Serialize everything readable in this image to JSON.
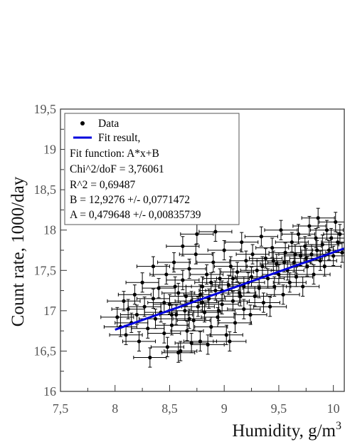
{
  "chart_data": {
    "type": "scatter",
    "xlabel": "Humidity, g/m",
    "xlabel_sup": "3",
    "ylabel": "Count rate, 1000/day",
    "xlim": [
      7.5,
      10.1
    ],
    "ylim": [
      16.0,
      19.5
    ],
    "x_ticks": [
      7.5,
      8,
      8.5,
      9,
      9.5,
      10
    ],
    "x_tick_labels": [
      "7,5",
      "8",
      "8,5",
      "9",
      "9,5",
      "10"
    ],
    "y_ticks": [
      16,
      16.5,
      17,
      17.5,
      18,
      18.5,
      19,
      19.5
    ],
    "y_tick_labels": [
      "16",
      "16,5",
      "17",
      "17,5",
      "18",
      "18,5",
      "19",
      "19,5"
    ],
    "legend": {
      "position": "top-left",
      "entries": [
        {
          "label": "Data",
          "marker": "point",
          "color": "#000000"
        },
        {
          "label": "Fit result,",
          "marker": "line",
          "color": "#0000dd"
        }
      ],
      "lines": [
        "Fit function: A*x+B",
        "Chi^2/doF = 3,76061",
        "R^2 = 0,69487",
        "B = 12,9276 +/- 0,0771472",
        "A = 0,479648 +/- 0,00835739"
      ]
    },
    "fit": {
      "A": 0.479648,
      "B": 12.9276,
      "x_range": [
        8.0,
        10.1
      ],
      "color": "#0000dd"
    },
    "series": [
      {
        "name": "Data",
        "color": "#000000",
        "x_err": 0.15,
        "y_err": 0.12,
        "points": [
          [
            8.02,
            16.92
          ],
          [
            8.05,
            16.8
          ],
          [
            8.08,
            17.12
          ],
          [
            8.1,
            16.7
          ],
          [
            8.12,
            17.02
          ],
          [
            8.15,
            16.85
          ],
          [
            8.18,
            17.2
          ],
          [
            8.2,
            16.95
          ],
          [
            8.22,
            16.62
          ],
          [
            8.25,
            17.35
          ],
          [
            8.27,
            17.05
          ],
          [
            8.3,
            16.78
          ],
          [
            8.32,
            16.42
          ],
          [
            8.35,
            17.15
          ],
          [
            8.37,
            16.9
          ],
          [
            8.4,
            17.28
          ],
          [
            8.42,
            16.98
          ],
          [
            8.45,
            16.72
          ],
          [
            8.47,
            17.45
          ],
          [
            8.5,
            17.08
          ],
          [
            8.52,
            16.82
          ],
          [
            8.54,
            17.6
          ],
          [
            8.56,
            16.95
          ],
          [
            8.58,
            17.22
          ],
          [
            8.6,
            16.5
          ],
          [
            8.62,
            17.38
          ],
          [
            8.64,
            17.0
          ],
          [
            8.66,
            16.75
          ],
          [
            8.68,
            17.52
          ],
          [
            8.7,
            17.12
          ],
          [
            8.72,
            16.88
          ],
          [
            8.74,
            17.7
          ],
          [
            8.76,
            17.05
          ],
          [
            8.78,
            16.62
          ],
          [
            8.8,
            17.3
          ],
          [
            8.82,
            16.98
          ],
          [
            8.84,
            17.45
          ],
          [
            8.86,
            17.15
          ],
          [
            8.88,
            16.8
          ],
          [
            8.9,
            17.6
          ],
          [
            8.92,
            17.25
          ],
          [
            8.94,
            16.92
          ],
          [
            8.96,
            17.4
          ],
          [
            8.98,
            17.08
          ],
          [
            9.0,
            17.75
          ],
          [
            9.02,
            16.7
          ],
          [
            9.04,
            17.32
          ],
          [
            9.06,
            17.55
          ],
          [
            9.08,
            17.12
          ],
          [
            9.1,
            16.85
          ],
          [
            9.12,
            17.48
          ],
          [
            9.14,
            17.22
          ],
          [
            9.16,
            17.85
          ],
          [
            9.18,
            17.02
          ],
          [
            9.2,
            17.62
          ],
          [
            9.22,
            17.35
          ],
          [
            9.24,
            16.95
          ],
          [
            9.26,
            17.7
          ],
          [
            9.28,
            17.18
          ],
          [
            9.3,
            17.5
          ],
          [
            9.32,
            17.28
          ],
          [
            9.34,
            17.92
          ],
          [
            9.36,
            17.1
          ],
          [
            9.38,
            17.65
          ],
          [
            9.4,
            17.4
          ],
          [
            9.42,
            17.05
          ],
          [
            9.44,
            17.78
          ],
          [
            9.46,
            17.3
          ],
          [
            9.48,
            17.58
          ],
          [
            9.5,
            17.45
          ],
          [
            9.52,
            18.0
          ],
          [
            9.54,
            17.2
          ],
          [
            9.56,
            17.72
          ],
          [
            9.58,
            17.5
          ],
          [
            9.6,
            17.35
          ],
          [
            9.62,
            17.85
          ],
          [
            9.64,
            17.6
          ],
          [
            9.66,
            17.42
          ],
          [
            9.68,
            17.95
          ],
          [
            9.7,
            17.68
          ],
          [
            9.72,
            17.3
          ],
          [
            9.74,
            17.8
          ],
          [
            9.76,
            17.55
          ],
          [
            9.78,
            18.05
          ],
          [
            9.8,
            17.7
          ],
          [
            9.82,
            17.45
          ],
          [
            9.84,
            17.9
          ],
          [
            9.86,
            18.15
          ],
          [
            9.88,
            17.62
          ],
          [
            9.9,
            17.82
          ],
          [
            9.92,
            17.55
          ],
          [
            9.94,
            18.0
          ],
          [
            9.96,
            17.75
          ],
          [
            9.98,
            17.9
          ],
          [
            10.0,
            17.68
          ],
          [
            10.02,
            18.1
          ],
          [
            10.04,
            17.85
          ],
          [
            10.06,
            17.95
          ],
          [
            10.08,
            17.72
          ],
          [
            8.48,
            16.55
          ],
          [
            8.58,
            16.48
          ],
          [
            8.7,
            16.6
          ],
          [
            8.85,
            16.58
          ],
          [
            8.35,
            17.55
          ],
          [
            8.62,
            17.8
          ],
          [
            8.75,
            17.95
          ],
          [
            8.92,
            17.98
          ],
          [
            9.05,
            16.62
          ],
          [
            8.55,
            17.3
          ],
          [
            8.65,
            17.18
          ],
          [
            8.8,
            17.1
          ],
          [
            8.95,
            17.0
          ],
          [
            9.15,
            17.18
          ],
          [
            9.25,
            17.42
          ],
          [
            9.35,
            17.55
          ],
          [
            9.45,
            17.62
          ],
          [
            9.55,
            17.6
          ],
          [
            9.65,
            17.7
          ],
          [
            9.75,
            17.65
          ],
          [
            9.85,
            17.75
          ],
          [
            8.45,
            17.1
          ],
          [
            8.52,
            16.95
          ],
          [
            8.68,
            16.9
          ],
          [
            8.78,
            17.2
          ],
          [
            8.88,
            17.35
          ],
          [
            8.98,
            17.25
          ],
          [
            9.08,
            17.4
          ],
          [
            9.18,
            17.3
          ]
        ]
      }
    ]
  }
}
